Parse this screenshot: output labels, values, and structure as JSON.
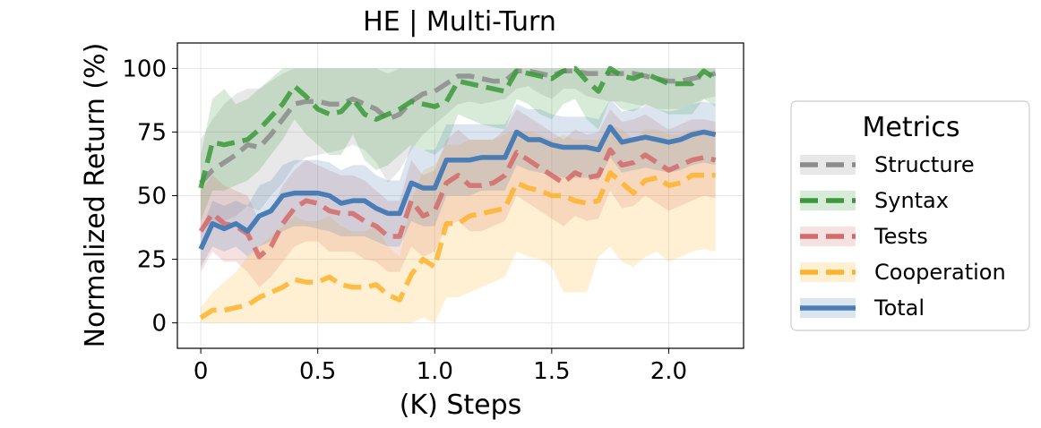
{
  "chart_data": {
    "type": "line",
    "title": "HE | Multi-Turn",
    "xlabel": "(K) Steps",
    "ylabel": "Normalized Return (%)",
    "xlim": [
      -0.1,
      2.32
    ],
    "ylim": [
      -10,
      110
    ],
    "xticks": [
      0,
      0.5,
      1.0,
      1.5,
      2.0
    ],
    "xtick_labels": [
      "0",
      "0.5",
      "1.0",
      "1.5",
      "2.0"
    ],
    "yticks": [
      0,
      25,
      50,
      75,
      100
    ],
    "ytick_labels": [
      "0",
      "25",
      "50",
      "75",
      "100"
    ],
    "grid": true,
    "legend": {
      "title": "Metrics",
      "placement": "right-outside"
    },
    "x": [
      0,
      0.05,
      0.1,
      0.15,
      0.2,
      0.25,
      0.3,
      0.35,
      0.4,
      0.45,
      0.5,
      0.55,
      0.6,
      0.65,
      0.7,
      0.75,
      0.8,
      0.85,
      0.9,
      0.95,
      1.0,
      1.05,
      1.1,
      1.15,
      1.2,
      1.25,
      1.3,
      1.35,
      1.4,
      1.45,
      1.5,
      1.55,
      1.6,
      1.65,
      1.7,
      1.75,
      1.8,
      1.85,
      1.9,
      1.95,
      2.0,
      2.05,
      2.1,
      2.15,
      2.2
    ],
    "series": [
      {
        "name": "Structure",
        "color": "#8c8c8c",
        "style": "dashed",
        "values": [
          55,
          60,
          63,
          66,
          70,
          69,
          74,
          80,
          86,
          87,
          87,
          86,
          86,
          88,
          86,
          84,
          80,
          82,
          87,
          90,
          91,
          94,
          97,
          97,
          96,
          95,
          95,
          99,
          99,
          98,
          97,
          99,
          99,
          98,
          98,
          98,
          98,
          98,
          97,
          96,
          95,
          95,
          96,
          97,
          98
        ],
        "lower": [
          38,
          38,
          40,
          42,
          46,
          44,
          50,
          55,
          62,
          65,
          66,
          67,
          68,
          70,
          68,
          63,
          55,
          60,
          68,
          74,
          78,
          82,
          86,
          87,
          86,
          87,
          88,
          92,
          93,
          90,
          88,
          92,
          92,
          89,
          88,
          87,
          87,
          86,
          85,
          84,
          84,
          84,
          86,
          88,
          89
        ],
        "upper": [
          72,
          80,
          86,
          90,
          92,
          92,
          95,
          98,
          100,
          100,
          100,
          100,
          100,
          100,
          100,
          100,
          98,
          100,
          100,
          100,
          100,
          100,
          100,
          100,
          100,
          100,
          100,
          100,
          100,
          100,
          100,
          100,
          100,
          100,
          100,
          100,
          100,
          100,
          100,
          100,
          100,
          100,
          100,
          100,
          100
        ]
      },
      {
        "name": "Syntax",
        "color": "#3a9a3a",
        "style": "dashed",
        "values": [
          53,
          71,
          70,
          71,
          72,
          76,
          81,
          86,
          93,
          89,
          84,
          82,
          83,
          88,
          82,
          80,
          82,
          84,
          87,
          86,
          85,
          87,
          95,
          94,
          93,
          92,
          91,
          99,
          98,
          97,
          96,
          99,
          100,
          95,
          91,
          100,
          97,
          96,
          98,
          96,
          94,
          94,
          94,
          99,
          96
        ],
        "lower": [
          40,
          52,
          52,
          54,
          56,
          60,
          66,
          72,
          80,
          74,
          70,
          66,
          66,
          74,
          64,
          60,
          62,
          66,
          70,
          68,
          66,
          70,
          82,
          80,
          78,
          77,
          76,
          88,
          86,
          82,
          80,
          86,
          88,
          80,
          76,
          88,
          84,
          83,
          86,
          84,
          82,
          82,
          82,
          88,
          85
        ],
        "upper": [
          66,
          88,
          92,
          86,
          88,
          92,
          96,
          100,
          100,
          100,
          100,
          100,
          100,
          100,
          100,
          100,
          100,
          100,
          100,
          100,
          100,
          100,
          100,
          100,
          100,
          100,
          100,
          100,
          100,
          100,
          100,
          100,
          100,
          100,
          100,
          100,
          100,
          100,
          100,
          100,
          100,
          100,
          100,
          100,
          100
        ]
      },
      {
        "name": "Tests",
        "color": "#d46a6a",
        "style": "dashed",
        "values": [
          36,
          43,
          39,
          38,
          35,
          26,
          30,
          39,
          45,
          48,
          47,
          44,
          43,
          43,
          40,
          38,
          34,
          34,
          48,
          42,
          44,
          55,
          58,
          54,
          54,
          55,
          58,
          67,
          64,
          61,
          58,
          55,
          59,
          57,
          58,
          68,
          62,
          63,
          66,
          63,
          60,
          62,
          64,
          65,
          64
        ],
        "lower": [
          20,
          28,
          24,
          24,
          20,
          14,
          18,
          24,
          30,
          32,
          32,
          28,
          28,
          28,
          25,
          24,
          20,
          20,
          30,
          26,
          28,
          38,
          40,
          36,
          36,
          38,
          40,
          50,
          47,
          44,
          41,
          38,
          42,
          40,
          41,
          52,
          45,
          46,
          50,
          47,
          44,
          46,
          48,
          50,
          49
        ],
        "upper": [
          52,
          58,
          54,
          52,
          50,
          40,
          44,
          54,
          60,
          64,
          62,
          60,
          58,
          58,
          56,
          52,
          48,
          48,
          64,
          58,
          60,
          72,
          76,
          72,
          72,
          72,
          76,
          84,
          81,
          78,
          75,
          72,
          76,
          74,
          75,
          84,
          79,
          80,
          82,
          79,
          76,
          78,
          80,
          80,
          79
        ]
      },
      {
        "name": "Cooperation",
        "color": "#fdb32a",
        "style": "dashed",
        "values": [
          2,
          5,
          5,
          6,
          7,
          10,
          12,
          14,
          17,
          16,
          16,
          18,
          15,
          14,
          14,
          15,
          11,
          9,
          19,
          25,
          22,
          39,
          39,
          42,
          43,
          44,
          45,
          55,
          53,
          52,
          50,
          50,
          48,
          47,
          48,
          59,
          55,
          51,
          56,
          57,
          54,
          55,
          58,
          58,
          58
        ],
        "lower": [
          0,
          0,
          0,
          0,
          0,
          0,
          0,
          0,
          0,
          0,
          0,
          0,
          0,
          0,
          0,
          0,
          0,
          0,
          0,
          2,
          0,
          10,
          10,
          12,
          14,
          16,
          18,
          28,
          26,
          25,
          22,
          12,
          12,
          12,
          26,
          30,
          24,
          22,
          26,
          28,
          24,
          26,
          28,
          29,
          28
        ],
        "upper": [
          6,
          12,
          16,
          20,
          26,
          30,
          34,
          38,
          42,
          40,
          40,
          42,
          38,
          36,
          36,
          38,
          30,
          26,
          48,
          60,
          62,
          70,
          70,
          72,
          72,
          72,
          74,
          76,
          75,
          74,
          72,
          74,
          72,
          72,
          72,
          78,
          76,
          72,
          76,
          76,
          74,
          74,
          76,
          76,
          76
        ]
      },
      {
        "name": "Total",
        "color": "#4a7db5",
        "style": "solid",
        "values": [
          29,
          39,
          37,
          39,
          36,
          42,
          44,
          50,
          51,
          51,
          51,
          50,
          47,
          48,
          48,
          45,
          43,
          43,
          55,
          53,
          53,
          64,
          64,
          64,
          65,
          65,
          65,
          75,
          72,
          72,
          70,
          69,
          69,
          69,
          68,
          77,
          71,
          72,
          73,
          72,
          71,
          72,
          74,
          75,
          74
        ],
        "lower": [
          22,
          30,
          28,
          30,
          26,
          30,
          32,
          36,
          38,
          38,
          37,
          36,
          34,
          34,
          34,
          32,
          30,
          30,
          40,
          38,
          38,
          50,
          50,
          50,
          52,
          52,
          52,
          62,
          60,
          59,
          58,
          57,
          57,
          57,
          56,
          65,
          59,
          60,
          61,
          60,
          59,
          60,
          62,
          63,
          62
        ],
        "upper": [
          36,
          48,
          46,
          48,
          46,
          54,
          56,
          62,
          64,
          64,
          64,
          63,
          60,
          62,
          62,
          58,
          56,
          56,
          70,
          68,
          68,
          78,
          78,
          78,
          78,
          78,
          78,
          86,
          84,
          84,
          82,
          81,
          81,
          81,
          80,
          88,
          83,
          84,
          85,
          84,
          83,
          84,
          86,
          87,
          86
        ]
      }
    ]
  }
}
